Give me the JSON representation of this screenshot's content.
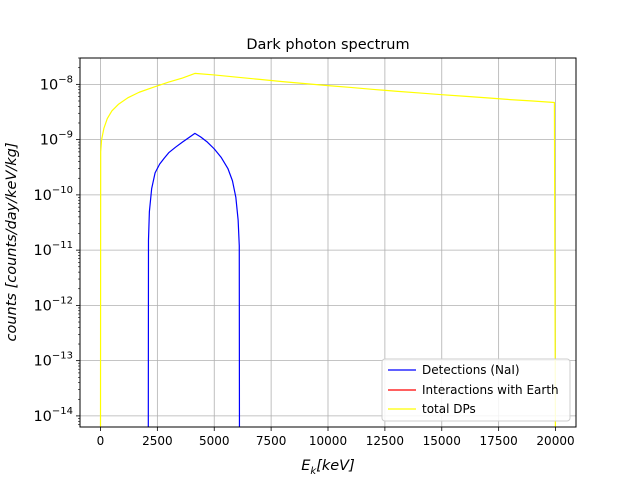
{
  "chart_data": {
    "type": "line",
    "title": "Dark photon spectrum",
    "xlabel": "E_k[keV]",
    "xlabel_parts": {
      "main": "E",
      "sub": "k",
      "rest": "[keV]"
    },
    "ylabel": "counts [counts/day/keV/kg]",
    "x_scale": "linear",
    "y_scale": "log",
    "xlim": [
      -900,
      20900
    ],
    "ylim": [
      6.3e-15,
      3e-08
    ],
    "grid": true,
    "legend_position": "lower right",
    "xticks": [
      0,
      2500,
      5000,
      7500,
      10000,
      12500,
      15000,
      17500,
      20000
    ],
    "xtick_labels": [
      "0",
      "2500",
      "5000",
      "7500",
      "10000",
      "12500",
      "15000",
      "17500",
      "20000"
    ],
    "yticks": [
      {
        "value": 1e-14,
        "base": "10",
        "exp": "−14"
      },
      {
        "value": 1e-13,
        "base": "10",
        "exp": "−13"
      },
      {
        "value": 1e-12,
        "base": "10",
        "exp": "−12"
      },
      {
        "value": 1e-11,
        "base": "10",
        "exp": "−11"
      },
      {
        "value": 1e-10,
        "base": "10",
        "exp": "−10"
      },
      {
        "value": 1e-09,
        "base": "10",
        "exp": "−9"
      },
      {
        "value": 1e-08,
        "base": "10",
        "exp": "−8"
      }
    ],
    "series": [
      {
        "name": "Detections (NaI)",
        "color": "#0000ff",
        "points": [
          [
            2100,
            1e-16
          ],
          [
            2110,
            1.5e-11
          ],
          [
            2150,
            5e-11
          ],
          [
            2250,
            1.3e-10
          ],
          [
            2400,
            2.5e-10
          ],
          [
            2600,
            3.6e-10
          ],
          [
            2800,
            4.6e-10
          ],
          [
            3000,
            5.8e-10
          ],
          [
            3300,
            7.3e-10
          ],
          [
            3600,
            9e-10
          ],
          [
            3900,
            1.1e-09
          ],
          [
            4150,
            1.3e-09
          ],
          [
            4400,
            1.12e-09
          ],
          [
            4700,
            9e-10
          ],
          [
            5000,
            6.8e-10
          ],
          [
            5300,
            4.8e-10
          ],
          [
            5600,
            3e-10
          ],
          [
            5800,
            1.8e-10
          ],
          [
            5950,
            9e-11
          ],
          [
            6050,
            3.5e-11
          ],
          [
            6100,
            1.2e-11
          ],
          [
            6110,
            1e-16
          ]
        ]
      },
      {
        "name": "Interactions with Earth",
        "color": "#ff0000",
        "points": []
      },
      {
        "name": "total DPs",
        "color": "#ffff00",
        "points": [
          [
            0,
            1e-16
          ],
          [
            10,
            6e-10
          ],
          [
            50,
            1e-09
          ],
          [
            150,
            1.6e-09
          ],
          [
            300,
            2.4e-09
          ],
          [
            500,
            3.3e-09
          ],
          [
            800,
            4.4e-09
          ],
          [
            1200,
            5.7e-09
          ],
          [
            1700,
            7.2e-09
          ],
          [
            2300,
            8.8e-09
          ],
          [
            3000,
            1.1e-08
          ],
          [
            3600,
            1.3e-08
          ],
          [
            4150,
            1.58e-08
          ],
          [
            5000,
            1.48e-08
          ],
          [
            6000,
            1.35e-08
          ],
          [
            7000,
            1.23e-08
          ],
          [
            8000,
            1.12e-08
          ],
          [
            9000,
            1.03e-08
          ],
          [
            10000,
            9.5e-09
          ],
          [
            11000,
            8.8e-09
          ],
          [
            12000,
            8.1e-09
          ],
          [
            13000,
            7.5e-09
          ],
          [
            14000,
            7e-09
          ],
          [
            15000,
            6.5e-09
          ],
          [
            16000,
            6.1e-09
          ],
          [
            17000,
            5.7e-09
          ],
          [
            18000,
            5.3e-09
          ],
          [
            19000,
            5e-09
          ],
          [
            19950,
            4.7e-09
          ],
          [
            20000,
            1e-16
          ]
        ]
      }
    ]
  }
}
